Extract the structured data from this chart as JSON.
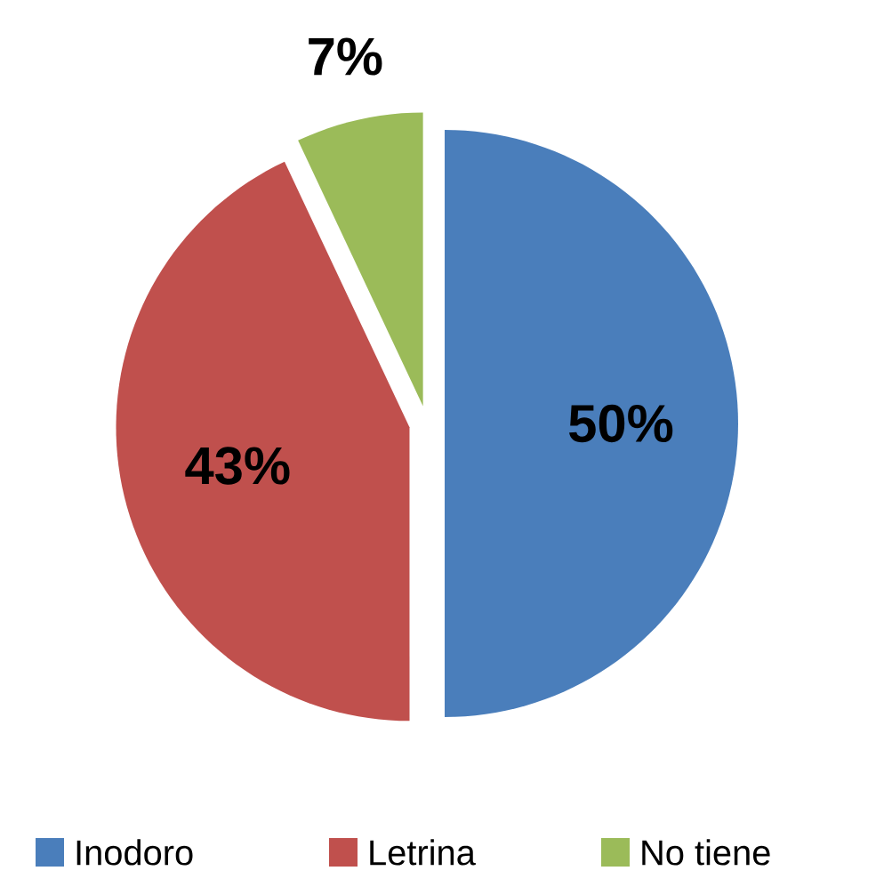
{
  "chart_data": {
    "type": "pie",
    "categories": [
      "Inodoro",
      "Letrina",
      "No tiene"
    ],
    "values": [
      50,
      43,
      7
    ],
    "value_labels": [
      "50%",
      "43%",
      "7%"
    ],
    "colors": [
      "#4a7ebb",
      "#c0504d",
      "#9bbb59"
    ],
    "legend": "bottom"
  }
}
